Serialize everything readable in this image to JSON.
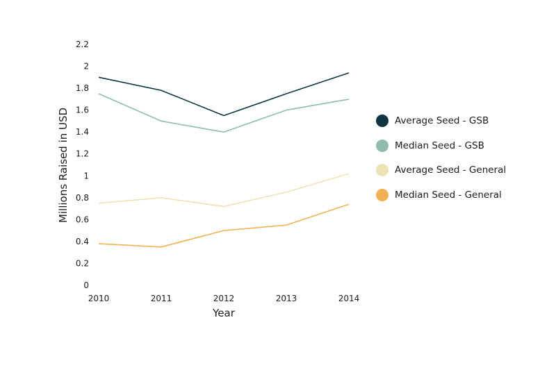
{
  "chart_data": {
    "type": "line",
    "title": "",
    "xlabel": "Year",
    "ylabel": "Millions Raised in USD",
    "x": [
      "2010",
      "2011",
      "2012",
      "2013",
      "2014"
    ],
    "yticks": [
      "0",
      "0.2",
      "0.4",
      "0.6",
      "0.8",
      "1",
      "1.2",
      "1.4",
      "1.6",
      "1.8",
      "2",
      "2.2"
    ],
    "ylim": [
      0,
      2.2
    ],
    "grid": false,
    "legend_position": "right",
    "series": [
      {
        "name": "Average Seed - GSB",
        "color": "#0d3640",
        "values": [
          1.9,
          1.78,
          1.55,
          1.75,
          1.94
        ]
      },
      {
        "name": "Median Seed - GSB",
        "color": "#8fbcae",
        "values": [
          1.75,
          1.5,
          1.4,
          1.6,
          1.7
        ]
      },
      {
        "name": "Average Seed - General",
        "color": "#ede3b5",
        "values": [
          0.75,
          0.8,
          0.72,
          0.85,
          1.02
        ]
      },
      {
        "name": "Median Seed - General",
        "color": "#f2b155",
        "values": [
          0.38,
          0.35,
          0.5,
          0.55,
          0.74
        ]
      }
    ]
  }
}
